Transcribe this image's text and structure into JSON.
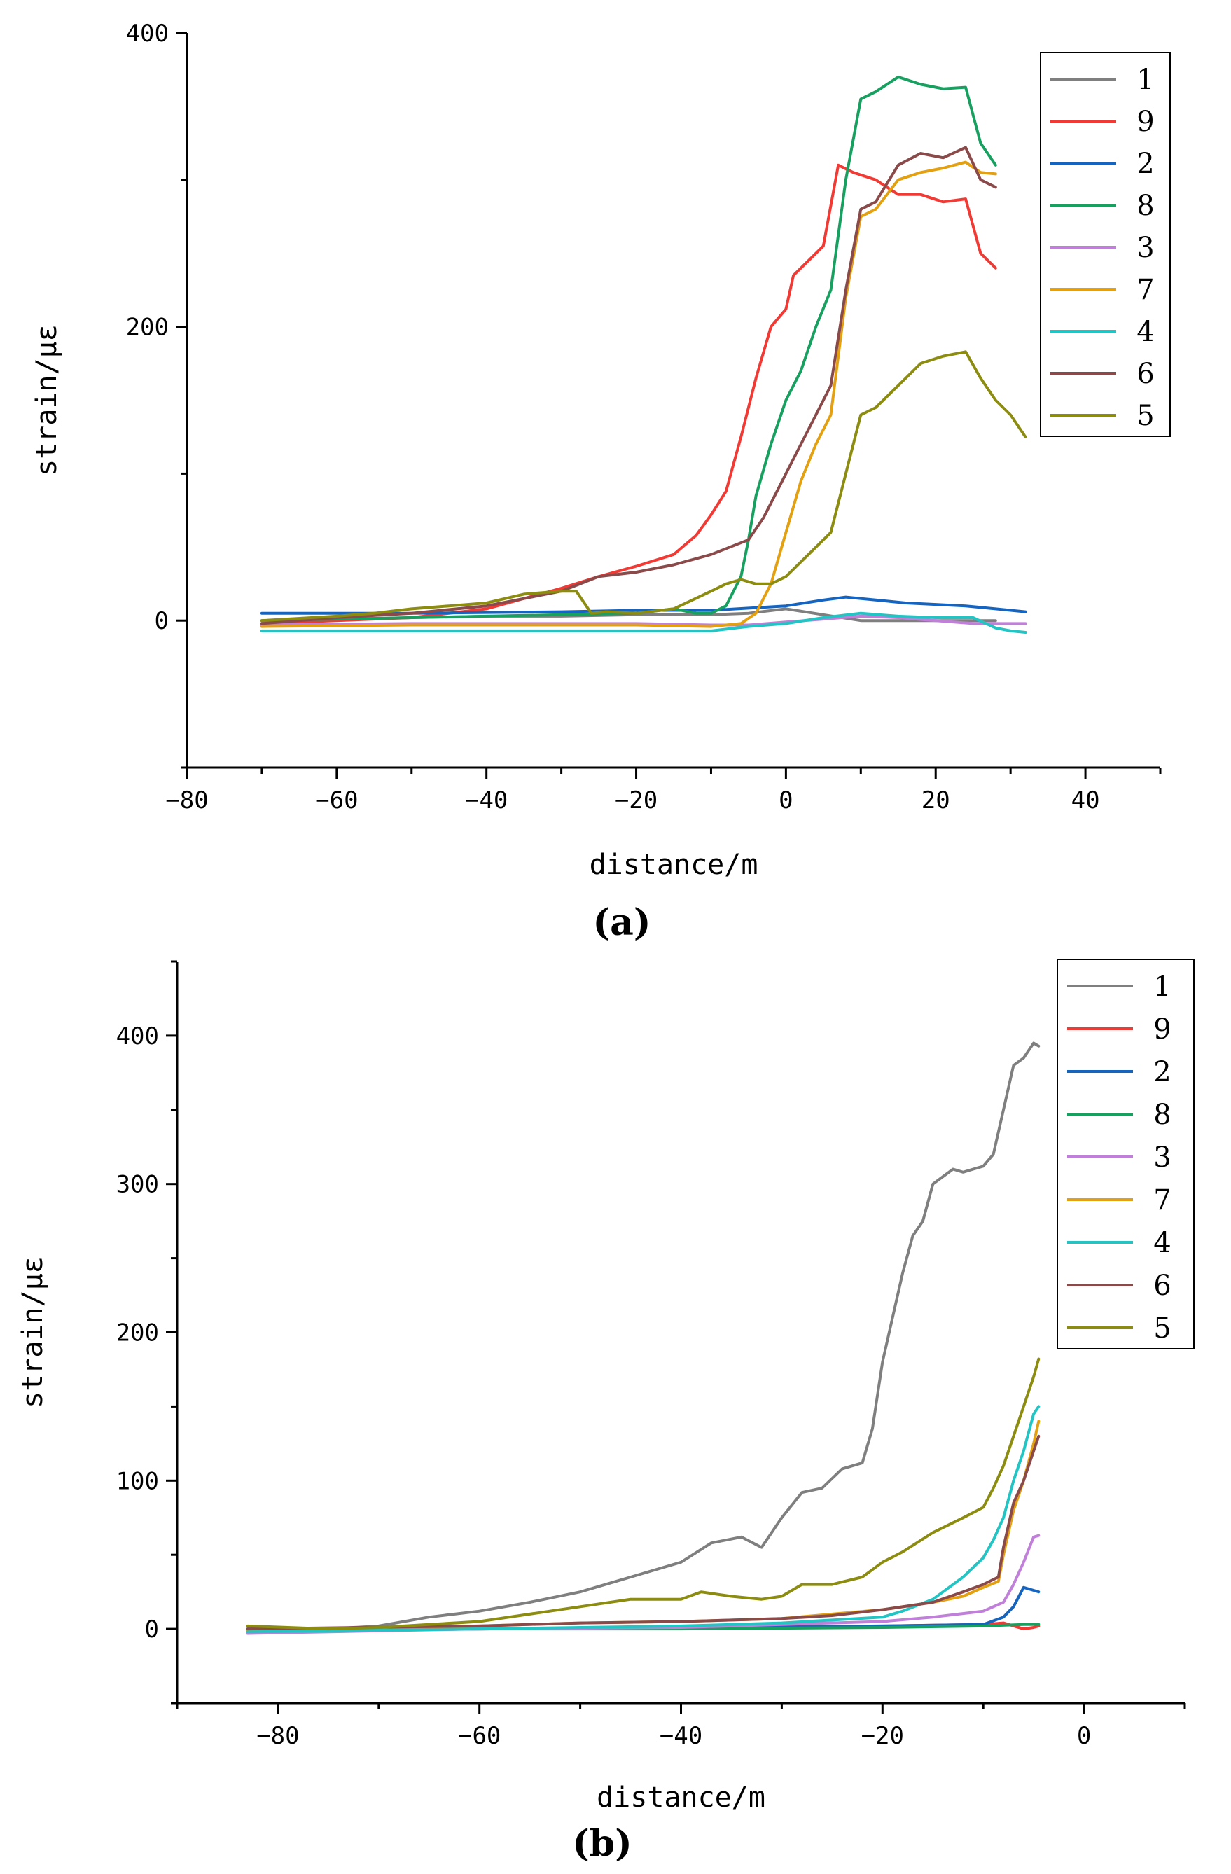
{
  "panels": [
    {
      "label": "(a)"
    },
    {
      "label": "(b)"
    }
  ],
  "chart_data": [
    {
      "type": "line",
      "title": "",
      "xlabel": "distance/m",
      "ylabel": "strain/με",
      "xlim": [
        -80,
        50
      ],
      "ylim": [
        -100,
        400
      ],
      "xticks": [
        -80,
        -60,
        -40,
        -20,
        0,
        20,
        40
      ],
      "yticks": [
        0,
        200,
        400
      ],
      "grid": false,
      "legend_position": "top-right",
      "series": [
        {
          "name": "1",
          "color": "#7f7f7f",
          "x": [
            -70,
            -60,
            -50,
            -40,
            -30,
            -20,
            -10,
            -5,
            0,
            5,
            10,
            20,
            28
          ],
          "y": [
            0,
            1,
            2,
            3,
            3,
            4,
            4,
            5,
            8,
            4,
            0,
            0,
            0
          ]
        },
        {
          "name": "9",
          "color": "#f23a35",
          "x": [
            -70,
            -50,
            -40,
            -35,
            -30,
            -25,
            -20,
            -15,
            -12,
            -10,
            -8,
            -6,
            -4,
            -2,
            0,
            1,
            3,
            5,
            7,
            9,
            12,
            15,
            18,
            21,
            24,
            26,
            28
          ],
          "y": [
            -2,
            2,
            8,
            15,
            22,
            30,
            37,
            45,
            58,
            72,
            88,
            125,
            165,
            200,
            212,
            235,
            245,
            255,
            310,
            305,
            300,
            290,
            290,
            285,
            287,
            250,
            240
          ]
        },
        {
          "name": "2",
          "color": "#1565c0",
          "x": [
            -70,
            -50,
            -30,
            -20,
            -10,
            0,
            5,
            8,
            12,
            16,
            20,
            24,
            28,
            32
          ],
          "y": [
            5,
            5,
            6,
            7,
            7,
            10,
            14,
            16,
            14,
            12,
            11,
            10,
            8,
            6
          ]
        },
        {
          "name": "8",
          "color": "#18a060",
          "x": [
            -70,
            -50,
            -30,
            -20,
            -15,
            -12,
            -10,
            -8,
            -6,
            -5,
            -4,
            -2,
            0,
            2,
            4,
            6,
            8,
            10,
            12,
            15,
            18,
            21,
            24,
            26,
            28
          ],
          "y": [
            0,
            2,
            4,
            5,
            8,
            5,
            5,
            10,
            30,
            55,
            85,
            120,
            150,
            170,
            200,
            225,
            300,
            355,
            360,
            370,
            365,
            362,
            363,
            325,
            310
          ]
        },
        {
          "name": "3",
          "color": "#c07fd8",
          "x": [
            -70,
            -50,
            -30,
            -20,
            -10,
            -5,
            0,
            5,
            10,
            15,
            20,
            25,
            32
          ],
          "y": [
            -3,
            -2,
            -2,
            -2,
            -3,
            -3,
            -1,
            1,
            3,
            2,
            0,
            -2,
            -2
          ]
        },
        {
          "name": "7",
          "color": "#e3a010",
          "x": [
            -70,
            -50,
            -30,
            -20,
            -10,
            -6,
            -4,
            -2,
            0,
            2,
            4,
            6,
            8,
            10,
            12,
            15,
            18,
            21,
            24,
            26,
            28
          ],
          "y": [
            -4,
            -3,
            -3,
            -3,
            -4,
            -2,
            5,
            25,
            60,
            95,
            120,
            140,
            220,
            275,
            280,
            300,
            305,
            308,
            312,
            305,
            304
          ]
        },
        {
          "name": "4",
          "color": "#22c4c4",
          "x": [
            -70,
            -50,
            -30,
            -20,
            -10,
            -5,
            0,
            5,
            10,
            15,
            20,
            25,
            28,
            30,
            32
          ],
          "y": [
            -7,
            -7,
            -7,
            -7,
            -7,
            -4,
            -2,
            2,
            5,
            3,
            2,
            2,
            -5,
            -7,
            -8
          ]
        },
        {
          "name": "6",
          "color": "#8b4a4a",
          "x": [
            -70,
            -60,
            -50,
            -40,
            -35,
            -30,
            -25,
            -20,
            -15,
            -10,
            -5,
            -3,
            0,
            2,
            4,
            6,
            8,
            10,
            12,
            15,
            18,
            21,
            24,
            26,
            28
          ],
          "y": [
            -2,
            2,
            5,
            10,
            15,
            20,
            30,
            33,
            38,
            45,
            55,
            70,
            100,
            120,
            140,
            160,
            225,
            280,
            285,
            310,
            318,
            315,
            322,
            300,
            295
          ]
        },
        {
          "name": "5",
          "color": "#8c8c10",
          "x": [
            -70,
            -60,
            -55,
            -50,
            -45,
            -40,
            -35,
            -30,
            -28,
            -26,
            -24,
            -20,
            -15,
            -10,
            -8,
            -6,
            -4,
            -2,
            0,
            2,
            4,
            6,
            8,
            10,
            12,
            15,
            18,
            21,
            24,
            26,
            28,
            30,
            32
          ],
          "y": [
            0,
            3,
            5,
            8,
            10,
            12,
            18,
            20,
            20,
            5,
            6,
            5,
            8,
            20,
            25,
            28,
            25,
            25,
            30,
            40,
            50,
            60,
            100,
            140,
            145,
            160,
            175,
            180,
            183,
            165,
            150,
            140,
            125
          ]
        }
      ]
    },
    {
      "type": "line",
      "title": "",
      "xlabel": "distance/m",
      "ylabel": "strain/με",
      "xlim": [
        -90,
        10
      ],
      "ylim": [
        -50,
        450
      ],
      "xticks": [
        -80,
        -60,
        -40,
        -20,
        0
      ],
      "yticks": [
        0,
        100,
        200,
        300,
        400
      ],
      "grid": false,
      "legend_position": "top-right",
      "series": [
        {
          "name": "1",
          "color": "#7f7f7f",
          "x": [
            -83,
            -75,
            -70,
            -65,
            -60,
            -55,
            -50,
            -45,
            -40,
            -37,
            -34,
            -32,
            -30,
            -28,
            -26,
            -24,
            -22,
            -21,
            -20,
            -19,
            -18,
            -17,
            -16,
            -15,
            -14,
            -13,
            -12,
            -11,
            -10,
            -9,
            -8,
            -7,
            -6,
            -5,
            -4.5
          ],
          "y": [
            -3,
            0,
            2,
            8,
            12,
            18,
            25,
            35,
            45,
            58,
            62,
            55,
            75,
            92,
            95,
            108,
            112,
            135,
            180,
            210,
            240,
            265,
            275,
            300,
            305,
            310,
            308,
            310,
            312,
            320,
            350,
            380,
            385,
            395,
            393
          ]
        },
        {
          "name": "9",
          "color": "#f23a35",
          "x": [
            -83,
            -60,
            -40,
            -20,
            -10,
            -8,
            -6,
            -5,
            -4.5
          ],
          "y": [
            -2,
            0,
            1,
            2,
            3,
            4,
            0,
            1,
            2
          ]
        },
        {
          "name": "2",
          "color": "#1565c0",
          "x": [
            -83,
            -60,
            -40,
            -20,
            -10,
            -8,
            -7,
            -6,
            -5,
            -4.5
          ],
          "y": [
            -1,
            0,
            1,
            2,
            3,
            8,
            15,
            28,
            26,
            25
          ]
        },
        {
          "name": "8",
          "color": "#18a060",
          "x": [
            -83,
            -60,
            -40,
            -20,
            -10,
            -6,
            -4.5
          ],
          "y": [
            0,
            0,
            0,
            1,
            2,
            3,
            3
          ]
        },
        {
          "name": "3",
          "color": "#c07fd8",
          "x": [
            -83,
            -60,
            -40,
            -30,
            -20,
            -15,
            -10,
            -8,
            -7,
            -6,
            -5,
            -4.5
          ],
          "y": [
            -3,
            0,
            1,
            3,
            5,
            8,
            12,
            18,
            30,
            45,
            62,
            63
          ]
        },
        {
          "name": "7",
          "color": "#e3a010",
          "x": [
            -83,
            -60,
            -50,
            -40,
            -30,
            -25,
            -20,
            -15,
            -12,
            -10,
            -8.5,
            -8,
            -7,
            -6,
            -5,
            -4.5
          ],
          "y": [
            -1,
            2,
            4,
            5,
            7,
            10,
            13,
            18,
            22,
            28,
            32,
            50,
            80,
            100,
            125,
            140
          ]
        },
        {
          "name": "4",
          "color": "#22c4c4",
          "x": [
            -83,
            -60,
            -40,
            -30,
            -25,
            -20,
            -18,
            -15,
            -12,
            -10,
            -9,
            -8,
            -7,
            -6,
            -5,
            -4.5
          ],
          "y": [
            -2,
            0,
            2,
            4,
            6,
            8,
            12,
            20,
            35,
            48,
            60,
            75,
            100,
            120,
            145,
            150
          ]
        },
        {
          "name": "6",
          "color": "#8b4a4a",
          "x": [
            -83,
            -60,
            -50,
            -40,
            -30,
            -25,
            -20,
            -15,
            -12,
            -10,
            -8.5,
            -8,
            -7,
            -6,
            -5,
            -4.5
          ],
          "y": [
            0,
            2,
            4,
            5,
            7,
            9,
            13,
            18,
            25,
            30,
            35,
            55,
            85,
            100,
            120,
            130
          ]
        },
        {
          "name": "5",
          "color": "#8c8c10",
          "x": [
            -83,
            -75,
            -70,
            -60,
            -55,
            -50,
            -45,
            -40,
            -38,
            -35,
            -32,
            -30,
            -28,
            -25,
            -22,
            -20,
            -18,
            -15,
            -12,
            -10,
            -9,
            -8,
            -7,
            -6,
            -5,
            -4.5
          ],
          "y": [
            2,
            0,
            1,
            5,
            10,
            15,
            20,
            20,
            25,
            22,
            20,
            22,
            30,
            30,
            35,
            45,
            52,
            65,
            75,
            82,
            95,
            110,
            130,
            150,
            170,
            182
          ]
        }
      ]
    }
  ]
}
